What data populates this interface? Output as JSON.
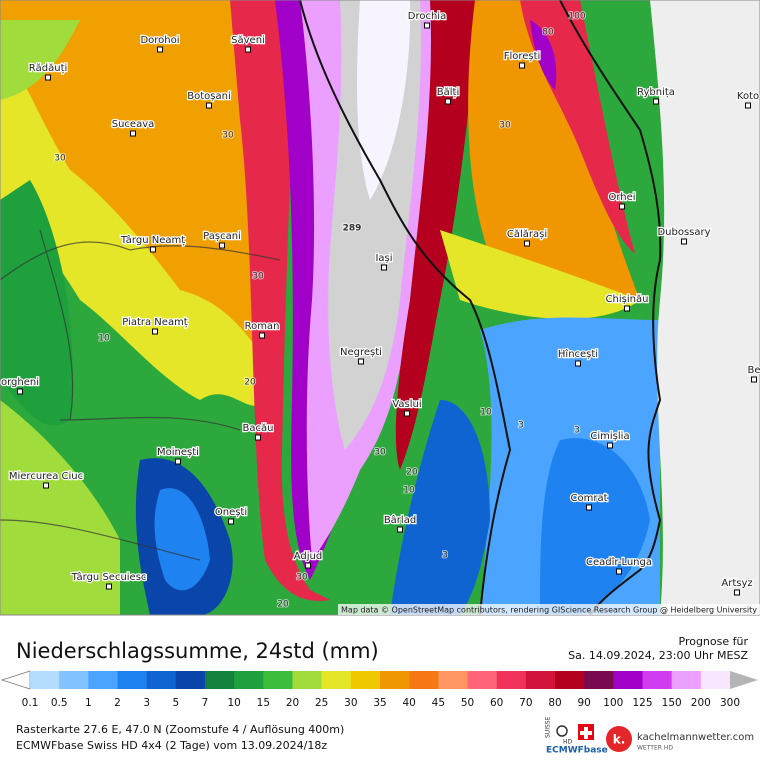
{
  "map": {
    "cities": [
      "Drochia",
      "Dorohoi",
      "Săveni",
      "Florești",
      "Rădăuți",
      "Botoșani",
      "Bălți",
      "Rybnița",
      "Koto",
      "Suceava",
      "Orhei",
      "Târgu Neamț",
      "Pașcani",
      "Călărași",
      "Dubossary",
      "Iași",
      "Chișinău",
      "Piatra Neamț",
      "Roman",
      "Negrești",
      "Hîncești",
      "Be",
      "orgheni",
      "Vaslui",
      "Bacău",
      "Cimișlia",
      "Moinești",
      "Miercurea Ciuc",
      "Comrat",
      "Onești",
      "Bârlad",
      "Adjud",
      "Ceadîr-Lunga",
      "Târgu Secuiesc",
      "Artsyz"
    ],
    "contour_labels": [
      "289",
      "100",
      "80",
      "30",
      "30",
      "30",
      "30",
      "30",
      "30",
      "10",
      "10",
      "10",
      "20",
      "20",
      "20",
      "3",
      "3",
      "3"
    ],
    "attribution": "Map data © OpenStreetMap contributors, rendering GIScience Research Group @ Heidelberg University"
  },
  "header": {
    "title": "Niederschlagssumme, 24std (mm)",
    "forecast_label": "Prognose für",
    "forecast_time": "Sa. 14.09.2024, 23:00 Uhr MESZ"
  },
  "legend": {
    "labels": [
      0.1,
      0.5,
      1,
      2,
      3,
      5,
      7,
      10,
      15,
      20,
      25,
      30,
      35,
      40,
      45,
      50,
      60,
      70,
      80,
      90,
      100,
      125,
      150,
      200,
      300
    ],
    "under_color": "#ffffff",
    "colors": [
      "#b4dcff",
      "#82c3ff",
      "#4ba5ff",
      "#1e82f0",
      "#0f64d2",
      "#0a46aa",
      "#14823c",
      "#1ea03c",
      "#3cbe3c",
      "#a0dc3c",
      "#e6e628",
      "#f0c800",
      "#f09600",
      "#f57814",
      "#ff9664",
      "#ff6478",
      "#f0325a",
      "#d2143c",
      "#b4001e",
      "#780a50",
      "#a000c8",
      "#d23cf0",
      "#eba0ff",
      "#f8e6ff"
    ],
    "over_color": "#b4b4b4"
  },
  "footer": {
    "line1": "Rasterkarte 27.6 E, 47.0 N (Zoomstufe 4 / Auflösung 400m)",
    "line2": "ECMWFbase Swiss HD 4x4 (2 Tage) vom 13.09.2024/18z"
  },
  "logos": {
    "suisse": "SUISSE",
    "hd": "HD",
    "ecmwf": "ECMWFbase",
    "site": "kachelmannwetter.com",
    "site_sub": "WETTER HD",
    "k": "k."
  }
}
